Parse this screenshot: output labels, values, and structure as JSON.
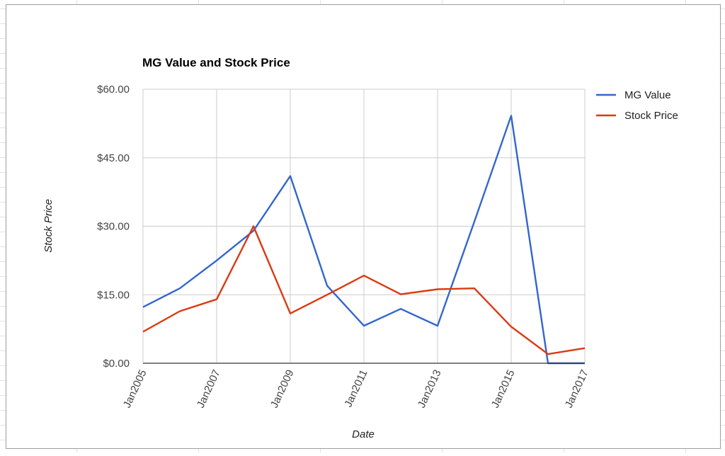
{
  "chart_data": {
    "type": "line",
    "title": "MG Value and Stock Price",
    "xlabel": "Date",
    "ylabel": "Stock Price",
    "x": [
      "Jan2005",
      "Jan2006",
      "Jan2007",
      "Jan2008",
      "Jan2009",
      "Jan2010",
      "Jan2011",
      "Jan2012",
      "Jan2013",
      "Jan2014",
      "Jan2015",
      "Jan2016",
      "Jan2017"
    ],
    "x_tick_labels": [
      "Jan2005",
      "Jan2007",
      "Jan2009",
      "Jan2011",
      "Jan2013",
      "Jan2015",
      "Jan2017"
    ],
    "y_tick_labels": [
      "$0.00",
      "$15.00",
      "$30.00",
      "$45.00",
      "$60.00"
    ],
    "y_ticks": [
      0,
      15,
      30,
      45,
      60
    ],
    "ylim": [
      0,
      60
    ],
    "grid": true,
    "legend_position": "right",
    "series": [
      {
        "name": "MG Value",
        "color": "#3366cc",
        "values": [
          12.3,
          16.4,
          22.5,
          29.0,
          41.0,
          17.0,
          8.2,
          11.9,
          8.2,
          31.0,
          54.2,
          0.0,
          0.0
        ]
      },
      {
        "name": "Stock Price",
        "color": "#dc3912",
        "values": [
          6.9,
          11.4,
          14.0,
          30.0,
          10.9,
          15.0,
          19.2,
          15.1,
          16.2,
          16.4,
          8.0,
          2.0,
          3.3
        ]
      }
    ]
  }
}
